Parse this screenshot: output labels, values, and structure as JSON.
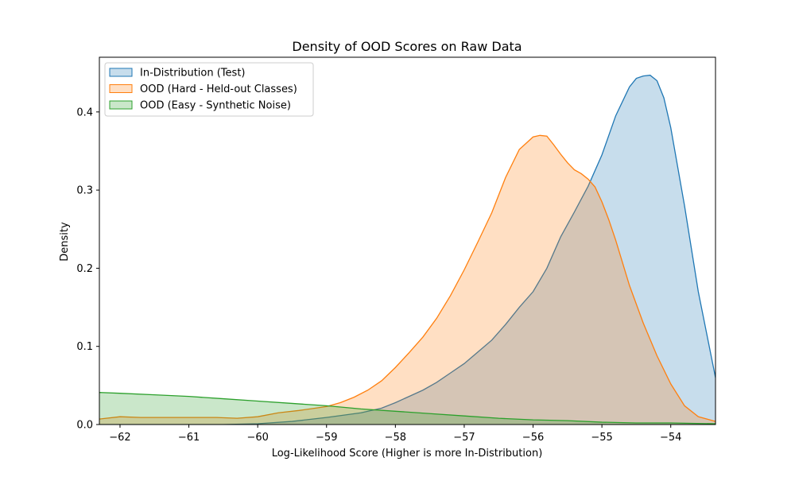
{
  "chart_data": {
    "type": "area",
    "title": "Density of OOD Scores on Raw Data",
    "xlabel": "Log-Likelihood Score (Higher is more In-Distribution)",
    "ylabel": "Density",
    "xlim": [
      -62.3,
      -53.35
    ],
    "ylim": [
      0,
      0.47
    ],
    "xticks": [
      -62,
      -61,
      -60,
      -59,
      -58,
      -57,
      -56,
      -55,
      -54
    ],
    "xtick_labels": [
      "−62",
      "−61",
      "−60",
      "−59",
      "−58",
      "−57",
      "−56",
      "−55",
      "−54"
    ],
    "yticks": [
      0.0,
      0.1,
      0.2,
      0.3,
      0.4
    ],
    "ytick_labels": [
      "0.0",
      "0.1",
      "0.2",
      "0.3",
      "0.4"
    ],
    "grid": false,
    "legend_position": "top-left",
    "series": [
      {
        "name": "In-Distribution (Test)",
        "color": "#1f77b4",
        "x": [
          -62.3,
          -60.5,
          -60.0,
          -59.5,
          -59.0,
          -58.5,
          -58.2,
          -58.0,
          -57.8,
          -57.6,
          -57.4,
          -57.2,
          -57.0,
          -56.8,
          -56.6,
          -56.4,
          -56.2,
          -56.0,
          -55.8,
          -55.6,
          -55.4,
          -55.2,
          -55.0,
          -54.8,
          -54.6,
          -54.5,
          -54.4,
          -54.3,
          -54.2,
          -54.1,
          -54.0,
          -53.8,
          -53.6,
          -53.35
        ],
        "y": [
          0.0,
          0.0,
          0.001,
          0.004,
          0.009,
          0.015,
          0.021,
          0.028,
          0.036,
          0.044,
          0.054,
          0.066,
          0.078,
          0.093,
          0.108,
          0.128,
          0.15,
          0.17,
          0.2,
          0.24,
          0.272,
          0.305,
          0.345,
          0.395,
          0.432,
          0.443,
          0.446,
          0.447,
          0.44,
          0.418,
          0.38,
          0.28,
          0.17,
          0.06
        ]
      },
      {
        "name": "OOD (Hard - Held-out Classes)",
        "color": "#ff7f0e",
        "x": [
          -62.3,
          -62.0,
          -61.7,
          -61.4,
          -61.0,
          -60.6,
          -60.3,
          -60.0,
          -59.7,
          -59.4,
          -59.0,
          -58.8,
          -58.6,
          -58.4,
          -58.2,
          -58.0,
          -57.8,
          -57.6,
          -57.4,
          -57.2,
          -57.0,
          -56.8,
          -56.6,
          -56.4,
          -56.2,
          -56.0,
          -55.9,
          -55.8,
          -55.7,
          -55.6,
          -55.5,
          -55.4,
          -55.3,
          -55.2,
          -55.1,
          -55.0,
          -54.9,
          -54.8,
          -54.6,
          -54.4,
          -54.2,
          -54.0,
          -53.8,
          -53.6,
          -53.35
        ],
        "y": [
          0.007,
          0.01,
          0.009,
          0.009,
          0.009,
          0.009,
          0.008,
          0.01,
          0.015,
          0.018,
          0.023,
          0.028,
          0.035,
          0.044,
          0.056,
          0.073,
          0.092,
          0.112,
          0.136,
          0.165,
          0.198,
          0.234,
          0.271,
          0.316,
          0.352,
          0.368,
          0.37,
          0.369,
          0.358,
          0.346,
          0.335,
          0.326,
          0.321,
          0.314,
          0.304,
          0.285,
          0.262,
          0.236,
          0.178,
          0.13,
          0.088,
          0.052,
          0.024,
          0.01,
          0.004
        ]
      },
      {
        "name": "OOD (Easy - Synthetic Noise)",
        "color": "#2ca02c",
        "x": [
          -62.3,
          -62.0,
          -61.5,
          -61.0,
          -60.5,
          -60.0,
          -59.5,
          -59.0,
          -58.5,
          -58.0,
          -57.5,
          -57.0,
          -56.5,
          -56.0,
          -55.5,
          -55.0,
          -54.5,
          -54.0,
          -53.35
        ],
        "y": [
          0.041,
          0.04,
          0.038,
          0.036,
          0.033,
          0.03,
          0.027,
          0.024,
          0.02,
          0.017,
          0.014,
          0.011,
          0.008,
          0.006,
          0.005,
          0.003,
          0.002,
          0.002,
          0.001
        ]
      }
    ]
  }
}
